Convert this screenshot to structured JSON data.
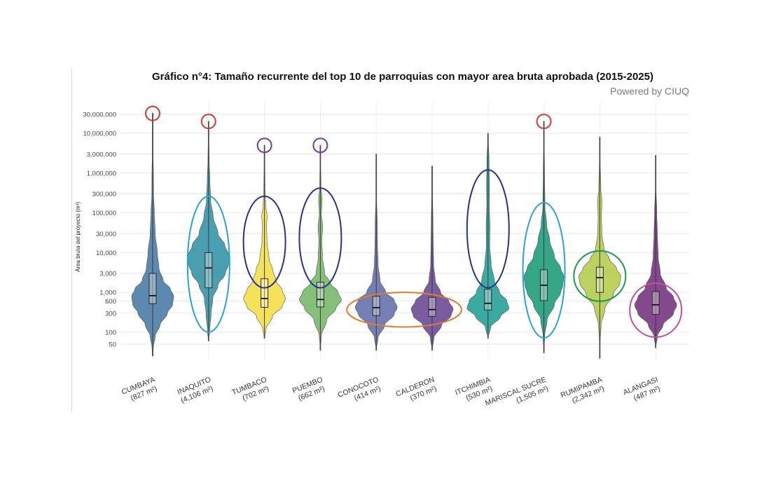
{
  "chart_data": {
    "type": "violin",
    "title": "Gráfico n°4: Tamaño recurrente del top 10 de parroquias con mayor area bruta aprobada (2015-2025)",
    "subtitle": "Powered by CIUQ",
    "ylabel": "Área bruta del proyecto (m²)",
    "yscale": "log",
    "ylim": [
      20,
      50000000
    ],
    "yticks": [
      {
        "value": 50,
        "label": "50"
      },
      {
        "value": 100,
        "label": "100"
      },
      {
        "value": 300,
        "label": "300"
      },
      {
        "value": 600,
        "label": "600"
      },
      {
        "value": 1000,
        "label": "1,000"
      },
      {
        "value": 3000,
        "label": "3,000"
      },
      {
        "value": 10000,
        "label": "10,000"
      },
      {
        "value": 30000,
        "label": "30,000"
      },
      {
        "value": 100000,
        "label": "100,000"
      },
      {
        "value": 300000,
        "label": "300,000"
      },
      {
        "value": 1000000,
        "label": "1,000,000"
      },
      {
        "value": 3000000,
        "label": "3,000,000"
      },
      {
        "value": 10000000,
        "label": "10,000,000"
      },
      {
        "value": 30000000,
        "label": "30,000,000"
      }
    ],
    "grid": true,
    "categories": [
      {
        "name": "CUMBAYA",
        "median_label": "(827 m²)",
        "color": "#4e7fa8",
        "median": 827,
        "q1": 520,
        "q3": 3000,
        "min": 25,
        "max": 32000000,
        "density": [
          [
            25,
            0.0
          ],
          [
            40,
            0.03
          ],
          [
            80,
            0.12
          ],
          [
            150,
            0.35
          ],
          [
            300,
            0.7
          ],
          [
            500,
            0.95
          ],
          [
            800,
            1.0
          ],
          [
            1200,
            0.85
          ],
          [
            2000,
            0.5
          ],
          [
            4000,
            0.3
          ],
          [
            10000,
            0.22
          ],
          [
            30000,
            0.12
          ],
          [
            100000,
            0.08
          ],
          [
            300000,
            0.04
          ],
          [
            1000000,
            0.035
          ],
          [
            3000000,
            0.015
          ],
          [
            32000000,
            0.0
          ]
        ]
      },
      {
        "name": "INAQUITO",
        "median_label": "(4,106 m²)",
        "color": "#3a97a8",
        "median": 4106,
        "q1": 1300,
        "q3": 10000,
        "min": 60,
        "max": 20000000,
        "density": [
          [
            60,
            0.0
          ],
          [
            100,
            0.05
          ],
          [
            300,
            0.12
          ],
          [
            700,
            0.2
          ],
          [
            1500,
            0.45
          ],
          [
            3000,
            0.8
          ],
          [
            5000,
            0.95
          ],
          [
            8000,
            1.0
          ],
          [
            15000,
            0.78
          ],
          [
            30000,
            0.45
          ],
          [
            80000,
            0.22
          ],
          [
            200000,
            0.1
          ],
          [
            700000,
            0.06
          ],
          [
            2000000,
            0.03
          ],
          [
            20000000,
            0.0
          ]
        ]
      },
      {
        "name": "TUMBACO",
        "median_label": "(702 m²)",
        "color": "#f4e04d",
        "median": 702,
        "q1": 420,
        "q3": 2200,
        "min": 70,
        "max": 5000000,
        "density": [
          [
            70,
            0.0
          ],
          [
            120,
            0.08
          ],
          [
            250,
            0.38
          ],
          [
            450,
            0.85
          ],
          [
            700,
            1.0
          ],
          [
            1100,
            0.85
          ],
          [
            2000,
            0.55
          ],
          [
            3500,
            0.4
          ],
          [
            7000,
            0.22
          ],
          [
            20000,
            0.12
          ],
          [
            50000,
            0.1
          ],
          [
            80000,
            0.13
          ],
          [
            150000,
            0.06
          ],
          [
            400000,
            0.03
          ],
          [
            1500000,
            0.02
          ],
          [
            5000000,
            0.0
          ]
        ]
      },
      {
        "name": "PUEMBO",
        "median_label": "(662 m²)",
        "color": "#79bb6e",
        "median": 662,
        "q1": 430,
        "q3": 1800,
        "min": 35,
        "max": 5000000,
        "density": [
          [
            35,
            0.0
          ],
          [
            80,
            0.05
          ],
          [
            200,
            0.3
          ],
          [
            400,
            0.75
          ],
          [
            650,
            1.0
          ],
          [
            1000,
            0.85
          ],
          [
            1800,
            0.45
          ],
          [
            3000,
            0.2
          ],
          [
            8000,
            0.1
          ],
          [
            20000,
            0.07
          ],
          [
            45000,
            0.11
          ],
          [
            90000,
            0.05
          ],
          [
            200000,
            0.08
          ],
          [
            500000,
            0.03
          ],
          [
            1500000,
            0.02
          ],
          [
            5000000,
            0.0
          ]
        ]
      },
      {
        "name": "CONOCOTO",
        "median_label": "(414 m²)",
        "color": "#6a74ad",
        "median": 414,
        "q1": 260,
        "q3": 800,
        "min": 35,
        "max": 3000000,
        "density": [
          [
            35,
            0.0
          ],
          [
            70,
            0.08
          ],
          [
            150,
            0.4
          ],
          [
            280,
            0.85
          ],
          [
            420,
            1.0
          ],
          [
            650,
            0.85
          ],
          [
            1000,
            0.45
          ],
          [
            2000,
            0.18
          ],
          [
            5000,
            0.09
          ],
          [
            15000,
            0.06
          ],
          [
            50000,
            0.05
          ],
          [
            200000,
            0.02
          ],
          [
            3000000,
            0.0
          ]
        ]
      },
      {
        "name": "CALDERON",
        "median_label": "(370 m²)",
        "color": "#6f4f98",
        "median": 370,
        "q1": 250,
        "q3": 750,
        "min": 35,
        "max": 1500000,
        "density": [
          [
            35,
            0.0
          ],
          [
            70,
            0.08
          ],
          [
            150,
            0.45
          ],
          [
            260,
            0.9
          ],
          [
            380,
            1.0
          ],
          [
            600,
            0.8
          ],
          [
            1000,
            0.4
          ],
          [
            2000,
            0.15
          ],
          [
            5000,
            0.07
          ],
          [
            20000,
            0.05
          ],
          [
            60000,
            0.04
          ],
          [
            300000,
            0.02
          ],
          [
            1500000,
            0.0
          ]
        ]
      },
      {
        "name": "ITCHIMBIA",
        "median_label": "(530 m²)",
        "color": "#2aa39a",
        "median": 530,
        "q1": 360,
        "q3": 1200,
        "min": 70,
        "max": 10000000,
        "density": [
          [
            70,
            0.0
          ],
          [
            130,
            0.12
          ],
          [
            250,
            0.6
          ],
          [
            400,
            1.0
          ],
          [
            600,
            0.9
          ],
          [
            1000,
            0.55
          ],
          [
            2000,
            0.3
          ],
          [
            5000,
            0.15
          ],
          [
            15000,
            0.08
          ],
          [
            50000,
            0.09
          ],
          [
            150000,
            0.06
          ],
          [
            500000,
            0.07
          ],
          [
            2000000,
            0.05
          ],
          [
            10000000,
            0.0
          ]
        ]
      },
      {
        "name": "MARISCAL SUCRE",
        "median_label": "(1,505 m²)",
        "color": "#24a07e",
        "median": 1505,
        "q1": 620,
        "q3": 3700,
        "min": 30,
        "max": 20000000,
        "density": [
          [
            30,
            0.0
          ],
          [
            80,
            0.04
          ],
          [
            200,
            0.15
          ],
          [
            500,
            0.5
          ],
          [
            1000,
            0.8
          ],
          [
            1500,
            0.9
          ],
          [
            2500,
            0.95
          ],
          [
            4000,
            0.8
          ],
          [
            8000,
            0.5
          ],
          [
            20000,
            0.28
          ],
          [
            50000,
            0.13
          ],
          [
            150000,
            0.05
          ],
          [
            1000000,
            0.03
          ],
          [
            20000000,
            0.0
          ]
        ]
      },
      {
        "name": "RUMIPAMBA",
        "median_label": "(2,342 m²)",
        "color": "#b6cd52",
        "median": 2342,
        "q1": 1000,
        "q3": 4300,
        "min": 22,
        "max": 8000000,
        "density": [
          [
            22,
            0.0
          ],
          [
            60,
            0.02
          ],
          [
            150,
            0.06
          ],
          [
            400,
            0.25
          ],
          [
            900,
            0.65
          ],
          [
            1700,
            0.95
          ],
          [
            2500,
            1.0
          ],
          [
            4000,
            0.8
          ],
          [
            7000,
            0.45
          ],
          [
            12000,
            0.2
          ],
          [
            30000,
            0.1
          ],
          [
            80000,
            0.08
          ],
          [
            200000,
            0.1
          ],
          [
            400000,
            0.05
          ],
          [
            2000000,
            0.02
          ],
          [
            8000000,
            0.0
          ]
        ]
      },
      {
        "name": "ALANGASI",
        "median_label": "(487 m²)",
        "color": "#7a3883",
        "median": 487,
        "q1": 280,
        "q3": 1050,
        "min": 40,
        "max": 2800000,
        "density": [
          [
            40,
            0.0
          ],
          [
            80,
            0.08
          ],
          [
            150,
            0.35
          ],
          [
            300,
            0.85
          ],
          [
            480,
            1.0
          ],
          [
            750,
            0.85
          ],
          [
            1300,
            0.5
          ],
          [
            3000,
            0.22
          ],
          [
            8000,
            0.12
          ],
          [
            30000,
            0.08
          ],
          [
            100000,
            0.05
          ],
          [
            400000,
            0.02
          ],
          [
            2800000,
            0.0
          ]
        ]
      }
    ],
    "annotations": [
      {
        "category": "CUMBAYA",
        "type": "circle",
        "color": "#d0392b",
        "y_low": 22000000,
        "y_high": 45000000
      },
      {
        "category": "INAQUITO",
        "type": "circle",
        "color": "#d0392b",
        "y_low": 14000000,
        "y_high": 28000000
      },
      {
        "category": "TUMBACO",
        "type": "circle",
        "color": "#6a3d9a",
        "y_low": 3500000,
        "y_high": 7000000
      },
      {
        "category": "PUEMBO",
        "type": "circle",
        "color": "#6a3d9a",
        "y_low": 3500000,
        "y_high": 7000000
      },
      {
        "category": "MARISCAL SUCRE",
        "type": "circle",
        "color": "#d0392b",
        "y_low": 14000000,
        "y_high": 28000000
      },
      {
        "category": "INAQUITO",
        "type": "ellipse",
        "color": "#29a3d6",
        "y_low": 100,
        "y_high": 260000
      },
      {
        "category": "TUMBACO",
        "type": "ellipse",
        "color": "#27338a",
        "y_low": 1300,
        "y_high": 260000
      },
      {
        "category": "PUEMBO",
        "type": "ellipse",
        "color": "#27338a",
        "y_low": 1300,
        "y_high": 420000
      },
      {
        "category": "ITCHIMBIA",
        "type": "ellipse",
        "color": "#27338a",
        "y_low": 1300,
        "y_high": 1200000
      },
      {
        "category": "MARISCAL SUCRE",
        "type": "ellipse",
        "color": "#29a3d6",
        "y_low": 72,
        "y_high": 180000
      },
      {
        "category": "RUMIPAMBA",
        "type": "ellipse",
        "color": "#1a9a4a",
        "y_low": 600,
        "y_high": 11000
      },
      {
        "category": "ALANGASI",
        "type": "ellipse",
        "color": "#c0509a",
        "y_low": 75,
        "y_high": 1700
      },
      {
        "category_span": [
          "CONOCOTO",
          "CALDERON"
        ],
        "type": "ellipse",
        "color": "#e07a2e",
        "y_low": 135,
        "y_high": 1000
      }
    ]
  }
}
